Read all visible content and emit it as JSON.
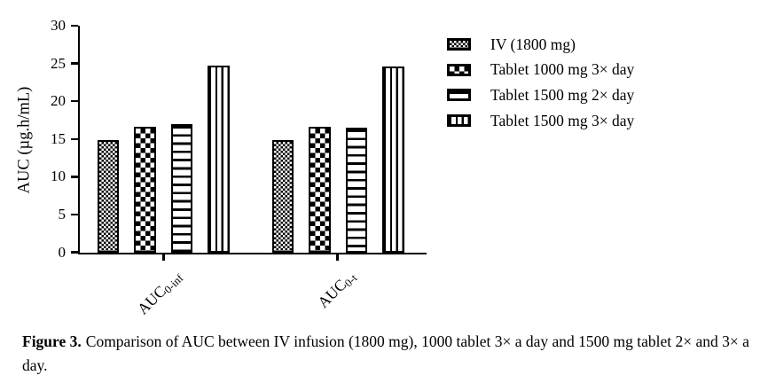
{
  "figure": {
    "caption_label": "Figure 3.",
    "caption_text": "Comparison of AUC between IV infusion (1800 mg), 1000 tablet 3× a day and 1500 mg tablet 2× and 3× a day."
  },
  "chart_data": {
    "type": "bar",
    "title": "",
    "xlabel": "",
    "ylabel": "AUC (µg.h/mL)",
    "ylim": [
      0,
      30
    ],
    "yticks": [
      0,
      5,
      10,
      15,
      20,
      25,
      30
    ],
    "grid": false,
    "legend_position": "right-outside",
    "background_color": "#ffffff",
    "bar_outline_color": "#000000",
    "categories": [
      "AUC0-inf",
      "AUC0-t"
    ],
    "categories_rich": [
      {
        "base": "AUC",
        "sub": "0-inf"
      },
      {
        "base": "AUC",
        "sub": "0-t"
      }
    ],
    "series": [
      {
        "name": "IV (1800 mg)",
        "pattern": "fine-checker",
        "values": [
          14.9,
          14.9
        ]
      },
      {
        "name": "Tablet 1000 mg 3× day",
        "pattern": "checker",
        "values": [
          16.7,
          16.7
        ]
      },
      {
        "name": "Tablet 1500 mg 2× day",
        "pattern": "h-stripes",
        "values": [
          17.0,
          16.5
        ]
      },
      {
        "name": "Tablet 1500 mg 3× day",
        "pattern": "v-stripes",
        "values": [
          24.8,
          24.7
        ]
      }
    ]
  }
}
